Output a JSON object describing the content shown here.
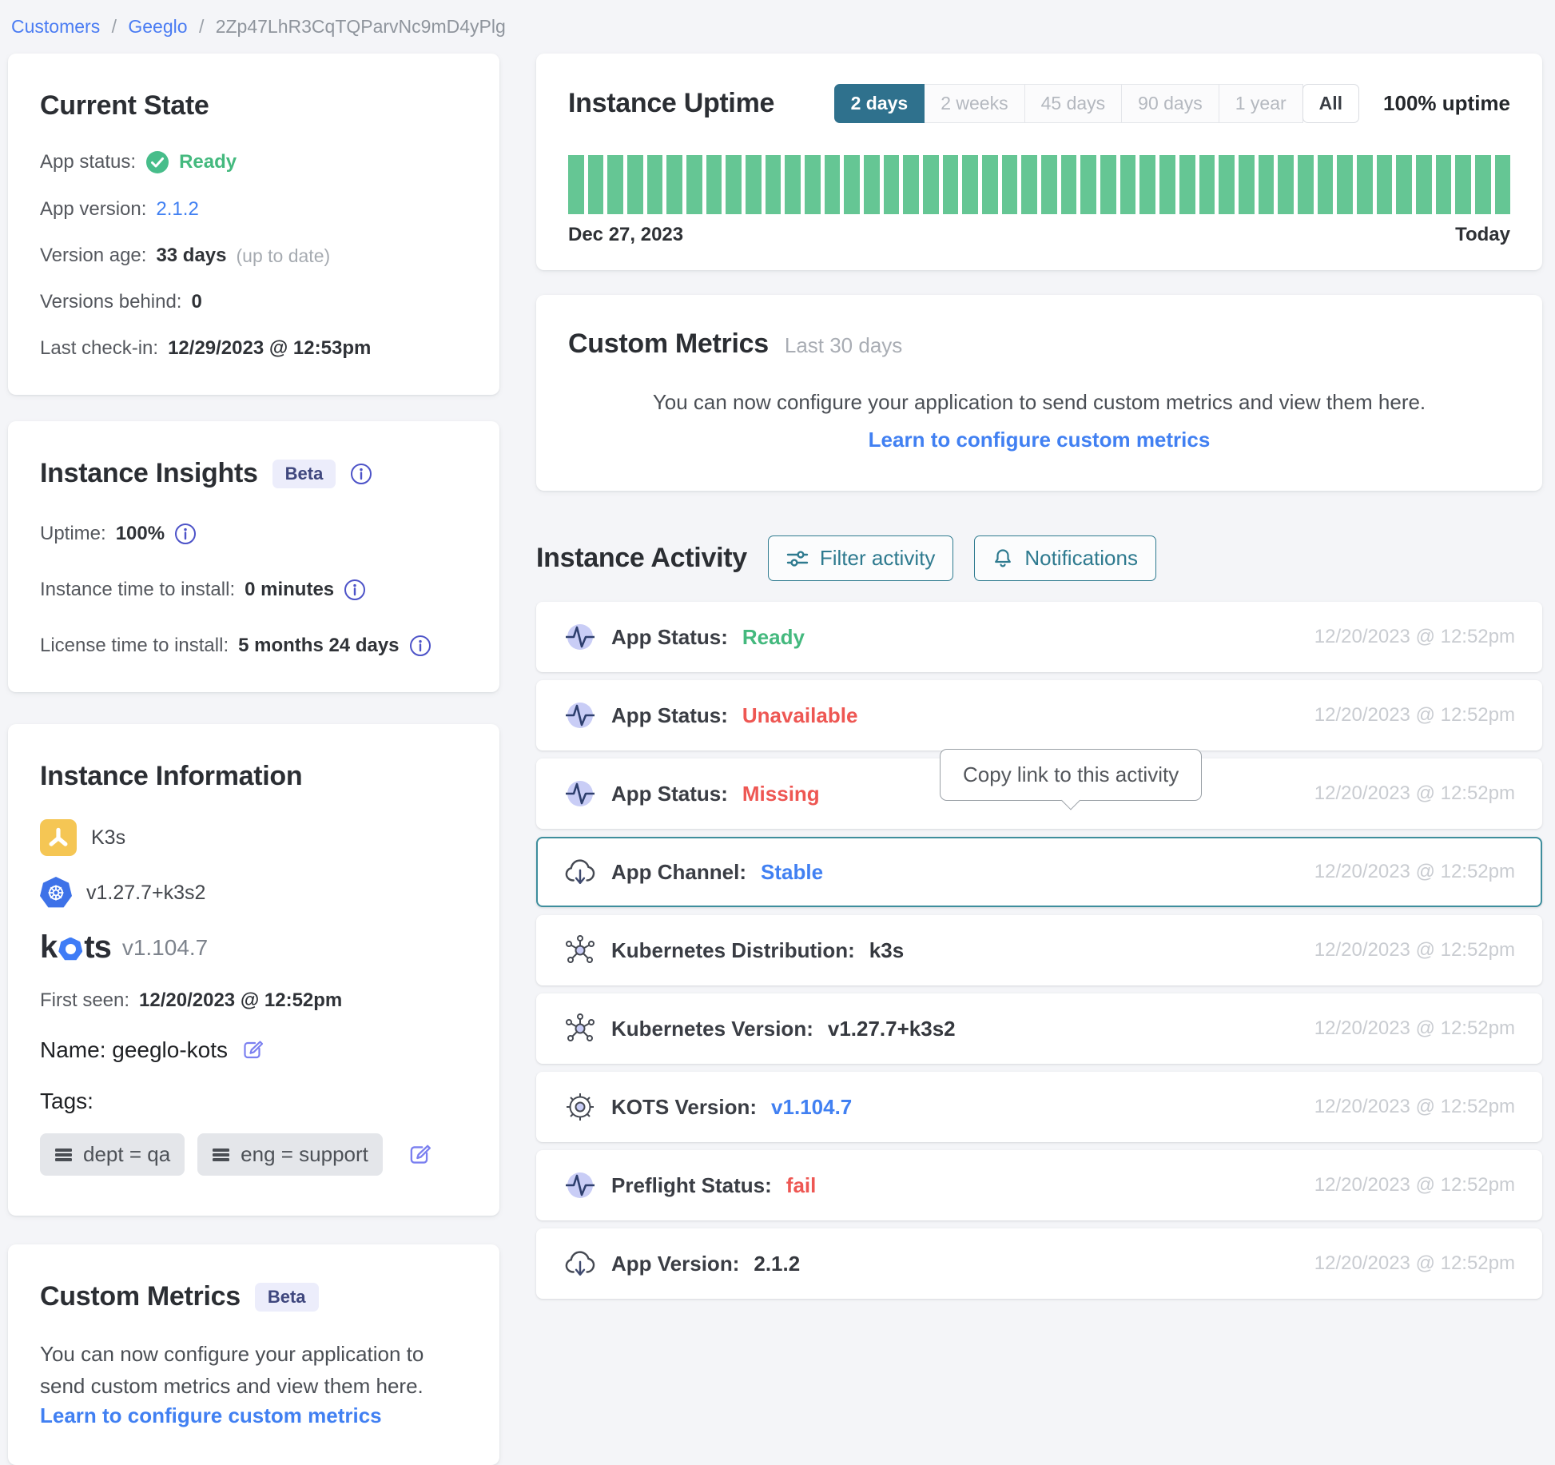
{
  "breadcrumb": {
    "customers": "Customers",
    "customer": "Geeglo",
    "separator1": "/",
    "separator2": "/",
    "instance_id": "2Zp47LhR3CqTQParvNc9mD4yPlg"
  },
  "current_state": {
    "title": "Current State",
    "app_status": {
      "label": "App status:",
      "value": "Ready"
    },
    "app_version": {
      "label": "App version:",
      "value": "2.1.2"
    },
    "version_age": {
      "label": "Version age:",
      "value": "33 days",
      "note": "(up to date)"
    },
    "versions_behind": {
      "label": "Versions behind:",
      "value": "0"
    },
    "last_checkin": {
      "label": "Last check-in:",
      "value": "12/29/2023 @ 12:53pm"
    }
  },
  "instance_insights": {
    "title": "Instance Insights",
    "badge": "Beta",
    "uptime": {
      "label": "Uptime:",
      "value": "100%"
    },
    "instance_time": {
      "label": "Instance time to install:",
      "value": "0 minutes"
    },
    "license_time": {
      "label": "License time to install:",
      "value": "5 months 24 days"
    }
  },
  "instance_information": {
    "title": "Instance Information",
    "distribution": "K3s",
    "kubernetes_version": "v1.27.7+k3s2",
    "kots_k": "k",
    "kots_ts": "ts",
    "kots_version": "v1.104.7",
    "first_seen": {
      "label": "First seen:",
      "value": "12/20/2023 @ 12:52pm"
    },
    "name_line": "Name: geeglo-kots",
    "tags_label": "Tags:",
    "tags": [
      "dept = qa",
      "eng = support"
    ]
  },
  "custom_metrics_left": {
    "title": "Custom Metrics",
    "badge": "Beta",
    "body": "You can now configure your application to send custom metrics and view them here.",
    "link": "Learn to configure custom metrics"
  },
  "uptime": {
    "title": "Instance Uptime",
    "ranges": [
      "2 days",
      "2 weeks",
      "45 days",
      "90 days",
      "1 year",
      "All"
    ],
    "selected_range": "2 days",
    "summary": "100% uptime",
    "start_label": "Dec 27, 2023",
    "end_label": "Today",
    "bar_count": 48,
    "bar_color": "#65c694",
    "bar_value": "100%"
  },
  "custom_metrics_right": {
    "title": "Custom Metrics",
    "subtitle": "Last 30 days",
    "body": "You can now configure your application to send custom metrics and view them here.",
    "link": "Learn to configure custom metrics"
  },
  "activity": {
    "title": "Instance Activity",
    "filter_button": "Filter activity",
    "notifications_button": "Notifications",
    "tooltip": "Copy link to this activity",
    "rows": [
      {
        "icon": "pulse-icon",
        "label": "App Status:",
        "value": "Ready",
        "color": "green",
        "timestamp": "12/20/2023 @ 12:52pm"
      },
      {
        "icon": "pulse-icon",
        "label": "App Status:",
        "value": "Unavailable",
        "color": "red",
        "timestamp": "12/20/2023 @ 12:52pm"
      },
      {
        "icon": "pulse-icon",
        "label": "App Status:",
        "value": "Missing",
        "color": "red",
        "timestamp": "12/20/2023 @ 12:52pm"
      },
      {
        "icon": "cloud-download-icon",
        "label": "App Channel:",
        "value": "Stable",
        "color": "blue",
        "timestamp": "12/20/2023 @ 12:52pm"
      },
      {
        "icon": "nodes-icon",
        "label": "Kubernetes Distribution:",
        "value": "k3s",
        "color": "dark",
        "timestamp": "12/20/2023 @ 12:52pm"
      },
      {
        "icon": "nodes-icon",
        "label": "Kubernetes Version:",
        "value": "v1.27.7+k3s2",
        "color": "dark",
        "timestamp": "12/20/2023 @ 12:52pm"
      },
      {
        "icon": "helm-wheel-icon",
        "label": "KOTS Version:",
        "value": "v1.104.7",
        "color": "blue",
        "timestamp": "12/20/2023 @ 12:52pm"
      },
      {
        "icon": "pulse-icon",
        "label": "Preflight Status:",
        "value": "fail",
        "color": "red",
        "timestamp": "12/20/2023 @ 12:52pm"
      },
      {
        "icon": "cloud-download-icon",
        "label": "App Version:",
        "value": "2.1.2",
        "color": "dark",
        "timestamp": "12/20/2023 @ 12:52pm"
      }
    ]
  },
  "colors": {
    "accent_teal": "#2f718d",
    "row_highlight_teal": "#3e8e9d",
    "status_green": "#44b97e",
    "status_red": "#ee5753",
    "link_blue": "#4180f2",
    "bar_green": "#65c694",
    "badge_lavender": "#ecedfb"
  }
}
